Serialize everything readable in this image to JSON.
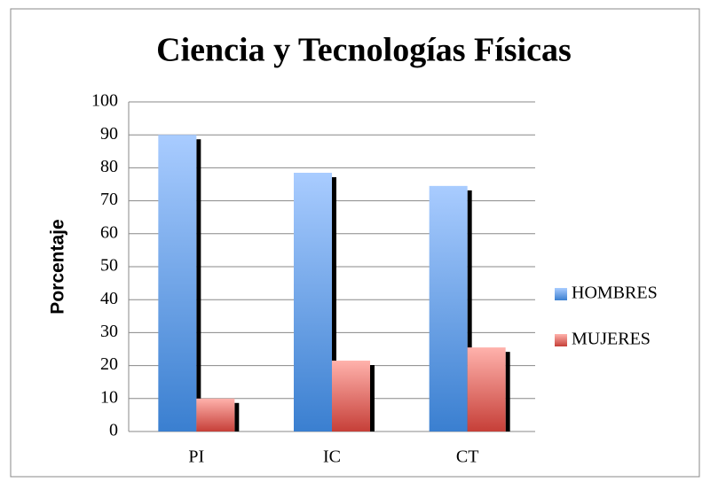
{
  "chart_data": {
    "type": "bar",
    "title": "Ciencia y Tecnologías Físicas",
    "y_label": "Porcentaje",
    "categories": [
      "PI",
      "IC",
      "CT"
    ],
    "series": [
      {
        "name": "HOMBRES",
        "color": "#4a8be0",
        "values": [
          90,
          78.5,
          74.5
        ]
      },
      {
        "name": "MUJERES",
        "color": "#d9544d",
        "values": [
          10,
          21.5,
          25.5
        ]
      }
    ],
    "ylim": [
      0,
      100
    ],
    "yticks": [
      0,
      10,
      20,
      30,
      40,
      50,
      60,
      70,
      80,
      90,
      100
    ],
    "grid": true,
    "legend": "right"
  }
}
